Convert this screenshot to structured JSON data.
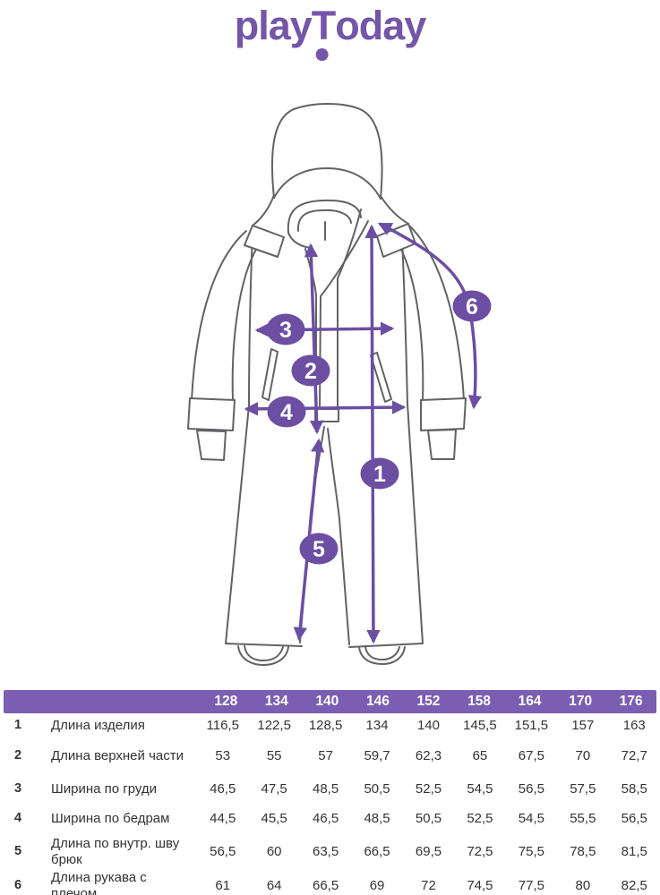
{
  "brand": {
    "name": "playToday",
    "logo": {
      "part1": "play",
      "part2": "T",
      "part3": "oday"
    }
  },
  "colors": {
    "accent": "#6C4EA3",
    "header_bg": "#7B5EB1",
    "logo": "#7456A8",
    "line": "#616265",
    "text": "#333333"
  },
  "diagram": {
    "description": "child one-piece overall with hood, front view, measurement callouts",
    "callouts": [
      "1",
      "2",
      "3",
      "4",
      "5",
      "6"
    ]
  },
  "table": {
    "sizes": [
      "128",
      "134",
      "140",
      "146",
      "152",
      "158",
      "164",
      "170",
      "176"
    ],
    "rows": [
      {
        "num": "1",
        "label": "Длина изделия",
        "values": [
          "116,5",
          "122,5",
          "128,5",
          "134",
          "140",
          "145,5",
          "151,5",
          "157",
          "163"
        ]
      },
      {
        "num": "2",
        "label": "Длина верхней части",
        "values": [
          "53",
          "55",
          "57",
          "59,7",
          "62,3",
          "65",
          "67,5",
          "70",
          "72,7"
        ]
      },
      {
        "num": "3",
        "label": "Ширина по груди",
        "values": [
          "46,5",
          "47,5",
          "48,5",
          "50,5",
          "52,5",
          "54,5",
          "56,5",
          "57,5",
          "58,5"
        ]
      },
      {
        "num": "4",
        "label": "Ширина по бедрам",
        "values": [
          "44,5",
          "45,5",
          "46,5",
          "48,5",
          "50,5",
          "52,5",
          "54,5",
          "55,5",
          "56,5"
        ]
      },
      {
        "num": "5",
        "label": "Длина по внутр. шву брюк",
        "values": [
          "56,5",
          "60",
          "63,5",
          "66,5",
          "69,5",
          "72,5",
          "75,5",
          "78,5",
          "81,5"
        ]
      },
      {
        "num": "6",
        "label": "Длина рукава с плечом",
        "values": [
          "61",
          "64",
          "66,5",
          "69",
          "72",
          "74,5",
          "77,5",
          "80",
          "82,5"
        ]
      }
    ]
  }
}
